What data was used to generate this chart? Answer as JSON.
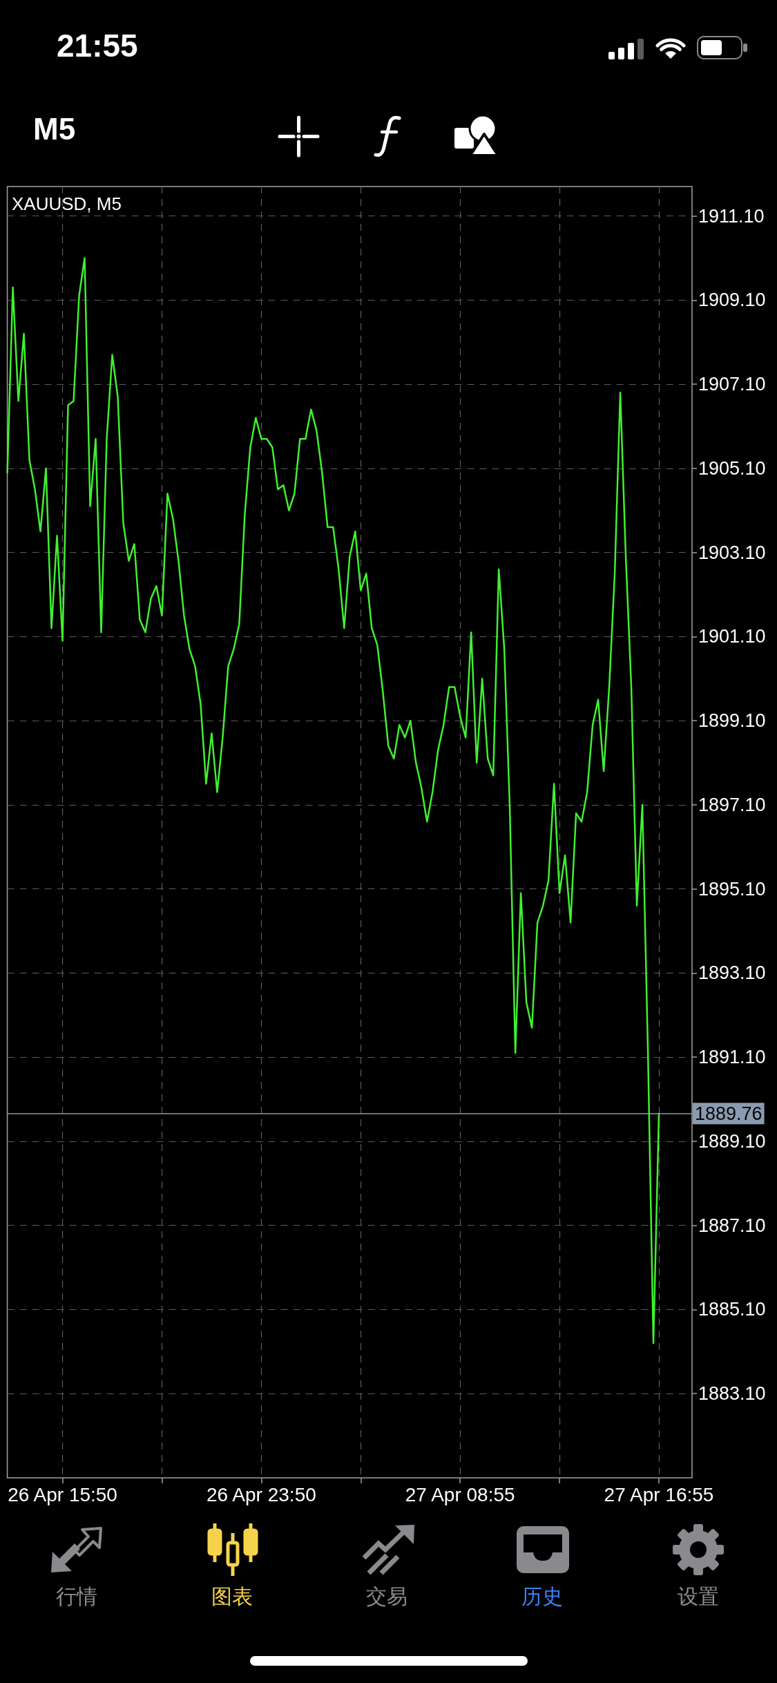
{
  "chart_data": {
    "type": "line",
    "title": "XAUUSD, M5",
    "categories": [
      null,
      null,
      null,
      null,
      null,
      null,
      null,
      null,
      null,
      null,
      "26 Apr 15:50",
      null,
      null,
      null,
      null,
      null,
      null,
      null,
      null,
      null,
      null,
      null,
      null,
      null,
      null,
      null,
      null,
      null,
      null,
      null,
      null,
      null,
      null,
      null,
      null,
      null,
      null,
      null,
      null,
      null,
      null,
      null,
      null,
      null,
      null,
      null,
      "26 Apr 23:50",
      null,
      null,
      null,
      null,
      null,
      null,
      null,
      null,
      null,
      null,
      null,
      null,
      null,
      null,
      null,
      null,
      null,
      null,
      null,
      null,
      null,
      null,
      null,
      null,
      null,
      null,
      null,
      null,
      null,
      null,
      null,
      null,
      null,
      null,
      null,
      "27 Apr 08:55",
      null,
      null,
      null,
      null,
      null,
      null,
      null,
      null,
      null,
      null,
      null,
      null,
      null,
      null,
      null,
      null,
      null,
      null,
      null,
      null,
      null,
      null,
      null,
      null,
      null,
      null,
      null,
      null,
      null,
      null,
      null,
      null,
      null,
      null,
      null,
      "27 Apr 16:55",
      null,
      null,
      null,
      null,
      null,
      null
    ],
    "values": [
      1905.0,
      1909.4,
      1906.7,
      1908.3,
      1905.3,
      1904.6,
      1903.6,
      1905.1,
      1901.3,
      1903.5,
      1901.0,
      1906.6,
      1906.7,
      1909.2,
      1910.1,
      1904.2,
      1905.8,
      1901.2,
      1905.8,
      1907.8,
      1906.8,
      1903.8,
      1902.9,
      1903.3,
      1901.5,
      1901.2,
      1902.0,
      1902.3,
      1901.6,
      1904.5,
      1903.9,
      1902.9,
      1901.6,
      1900.8,
      1900.4,
      1899.5,
      1897.6,
      1898.8,
      1897.4,
      1898.7,
      1900.4,
      1900.8,
      1901.4,
      1904.0,
      1905.6,
      1906.3,
      1905.8,
      1905.8,
      1905.6,
      1904.6,
      1904.7,
      1904.1,
      1904.5,
      1905.8,
      1905.8,
      1906.5,
      1906.0,
      1905.0,
      1903.7,
      1903.7,
      1902.7,
      1901.3,
      1903.0,
      1903.6,
      1902.2,
      1902.6,
      1901.3,
      1900.9,
      1899.8,
      1898.5,
      1898.2,
      1899.0,
      1898.7,
      1899.1,
      1898.1,
      1897.5,
      1896.7,
      1897.4,
      1898.4,
      1899.0,
      1899.9,
      1899.9,
      1899.2,
      1898.7,
      1901.2,
      1898.1,
      1900.1,
      1898.2,
      1897.8,
      1902.7,
      1900.8,
      1897.0,
      1891.2,
      1895.0,
      1892.4,
      1891.8,
      1894.3,
      1894.7,
      1895.3,
      1897.6,
      1895.0,
      1895.9,
      1894.3,
      1896.9,
      1896.7,
      1897.4,
      1899.0,
      1899.6,
      1897.9,
      1899.9,
      1902.6,
      1906.9,
      1903.0,
      1899.9,
      1894.7,
      1897.1,
      1891.3,
      1884.3,
      1889.76,
      null,
      null,
      null,
      null,
      null,
      null
    ],
    "color": "#40f030",
    "ylim": [
      1881.1,
      1911.8
    ],
    "yticks": [
      {
        "value": 1883.1,
        "label": "1883.10"
      },
      {
        "value": 1885.1,
        "label": "1885.10"
      },
      {
        "value": 1887.1,
        "label": "1887.10"
      },
      {
        "value": 1889.1,
        "label": "1889.10"
      },
      {
        "value": 1891.1,
        "label": "1891.10"
      },
      {
        "value": 1893.1,
        "label": "1893.10"
      },
      {
        "value": 1895.1,
        "label": "1895.10"
      },
      {
        "value": 1897.1,
        "label": "1897.10"
      },
      {
        "value": 1899.1,
        "label": "1899.10"
      },
      {
        "value": 1901.1,
        "label": "1901.10"
      },
      {
        "value": 1903.1,
        "label": "1903.10"
      },
      {
        "value": 1905.1,
        "label": "1905.10"
      },
      {
        "value": 1907.1,
        "label": "1907.10"
      },
      {
        "value": 1909.1,
        "label": "1909.10"
      },
      {
        "value": 1911.1,
        "label": "1911.10"
      }
    ],
    "grid": true,
    "ref_lines": [
      {
        "axis": "y",
        "value": 1889.76,
        "label": "1889.76",
        "color": "#8a9bb0"
      }
    ],
    "annotations": [
      "21:55",
      "M5",
      "行情",
      "图表",
      "交易",
      "历史",
      "设置"
    ]
  }
}
